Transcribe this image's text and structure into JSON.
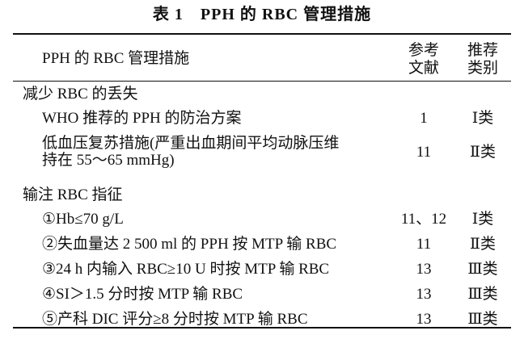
{
  "title": "表 1　PPH 的 RBC 管理措施",
  "header": {
    "measure": "PPH 的 RBC 管理措施",
    "reference": [
      "参考",
      "文献"
    ],
    "class": [
      "推荐",
      "类别"
    ]
  },
  "sections": [
    {
      "label": "减少 RBC 的丢失",
      "rows": [
        {
          "measure": [
            "WHO 推荐的 PPH 的防治方案"
          ],
          "reference": "1",
          "class": "Ⅰ类"
        },
        {
          "measure": [
            "低血压复苏措施(严重出血期间平均动脉压维",
            "持在 55～65 mmHg)"
          ],
          "reference": "11",
          "class": "Ⅱ类"
        }
      ]
    },
    {
      "label": "输注 RBC 指征",
      "rows": [
        {
          "measure": [
            "①Hb≤70 g/L"
          ],
          "reference": "11、12",
          "class": "Ⅰ类"
        },
        {
          "measure": [
            "②失血量达 2 500 ml 的 PPH 按 MTP 输 RBC"
          ],
          "reference": "11",
          "class": "Ⅱ类"
        },
        {
          "measure": [
            "③24 h 内输入 RBC≥10 U 时按 MTP 输 RBC"
          ],
          "reference": "13",
          "class": "Ⅲ类"
        },
        {
          "measure": [
            "④SI＞1.5 分时按 MTP 输 RBC"
          ],
          "reference": "13",
          "class": "Ⅲ类"
        },
        {
          "measure": [
            "⑤产科 DIC 评分≥8 分时按 MTP 输 RBC"
          ],
          "reference": "13",
          "class": "Ⅲ类"
        }
      ]
    }
  ]
}
